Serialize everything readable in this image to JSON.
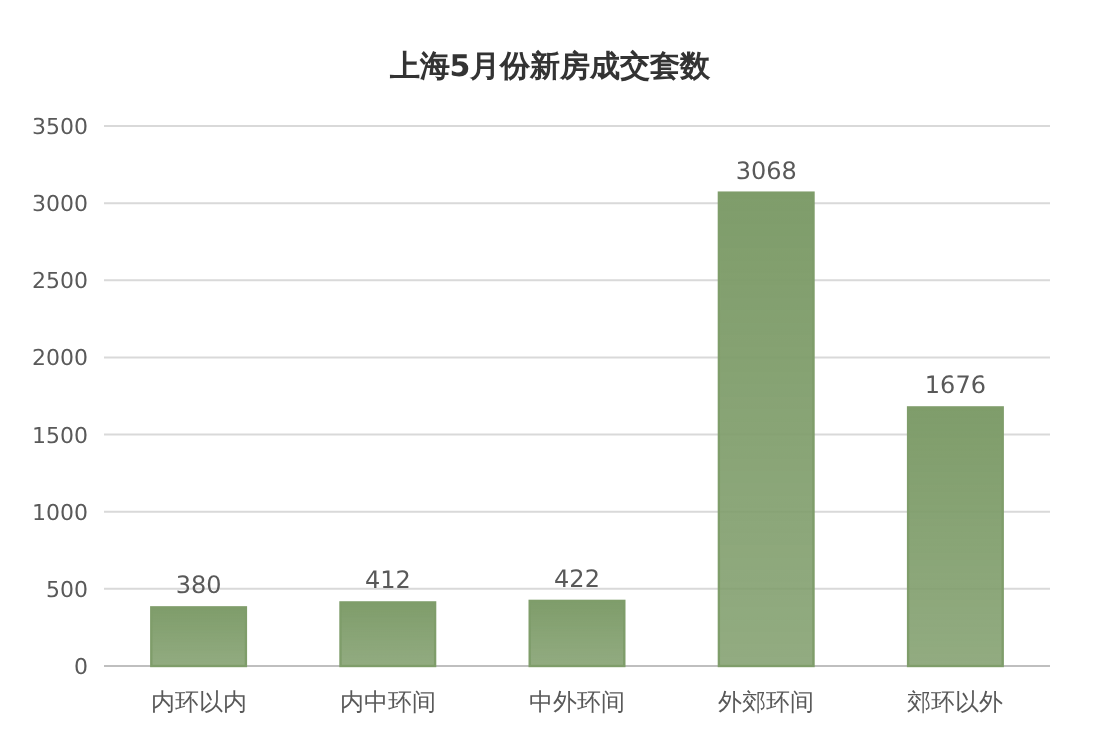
{
  "chart_data": {
    "type": "bar",
    "title": "上海5月份新房成交套数",
    "categories": [
      "内环以内",
      "内中环间",
      "中外环间",
      "外郊环间",
      "郊环以外"
    ],
    "values": [
      380,
      412,
      422,
      3068,
      1676
    ],
    "color": "#a9d18e",
    "ylim": [
      0,
      3500
    ],
    "yticks": [
      0,
      500,
      1000,
      1500,
      2000,
      2500,
      3000,
      3500
    ],
    "grid": "y",
    "data_labels": true
  }
}
